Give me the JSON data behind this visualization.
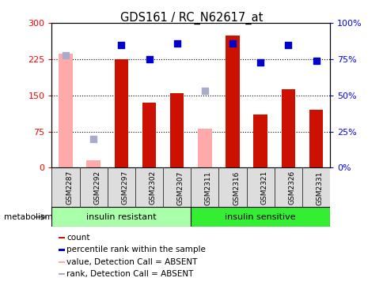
{
  "title": "GDS161 / RC_N62617_at",
  "samples": [
    "GSM2287",
    "GSM2292",
    "GSM2297",
    "GSM2302",
    "GSM2307",
    "GSM2311",
    "GSM2316",
    "GSM2321",
    "GSM2326",
    "GSM2331"
  ],
  "count_values": [
    null,
    null,
    225,
    135,
    155,
    null,
    275,
    110,
    163,
    120
  ],
  "count_absent": [
    237,
    15,
    null,
    null,
    null,
    80,
    null,
    null,
    null,
    null
  ],
  "rank_values": [
    null,
    null,
    85,
    75,
    86,
    null,
    86,
    73,
    85,
    74
  ],
  "rank_absent": [
    78,
    20,
    null,
    null,
    null,
    53,
    null,
    null,
    null,
    null
  ],
  "ylim_left": [
    0,
    300
  ],
  "ylim_right": [
    0,
    100
  ],
  "yticks_left": [
    0,
    75,
    150,
    225,
    300
  ],
  "yticks_right": [
    0,
    25,
    50,
    75,
    100
  ],
  "ytick_labels_left": [
    "0",
    "75",
    "150",
    "225",
    "300"
  ],
  "ytick_labels_right": [
    "0%",
    "25%",
    "50%",
    "75%",
    "100%"
  ],
  "group1_label": "insulin resistant",
  "group2_label": "insulin sensitive",
  "group1_count": 5,
  "group2_count": 5,
  "bar_color_red": "#cc1100",
  "bar_color_pink": "#ffaaaa",
  "dot_color_blue": "#0000cc",
  "dot_color_lightblue": "#aaaacc",
  "group1_color": "#aaffaa",
  "group2_color": "#33ee33",
  "legend_labels": [
    "count",
    "percentile rank within the sample",
    "value, Detection Call = ABSENT",
    "rank, Detection Call = ABSENT"
  ],
  "legend_colors": [
    "#cc1100",
    "#0000cc",
    "#ffaaaa",
    "#aaaacc"
  ],
  "bar_width": 0.5,
  "dot_size": 35,
  "background_color": "#ffffff",
  "xtick_bg": "#dddddd",
  "grid_color": "#000000"
}
